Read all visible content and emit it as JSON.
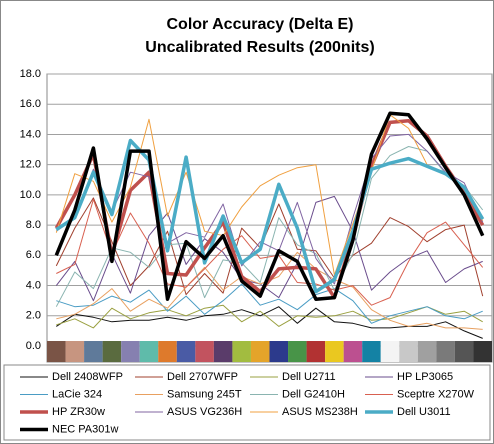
{
  "chart_data": {
    "type": "line",
    "title": "Color Accuracy (Delta E)",
    "subtitle": "Uncalibrated Results (200nits)",
    "categories": [
      null,
      null,
      null,
      null,
      null,
      null,
      null,
      null,
      null,
      null,
      null,
      null,
      null,
      null,
      null,
      null,
      null,
      null,
      null,
      null,
      null,
      null,
      null,
      null
    ],
    "swatch_colors": [
      "#7a5446",
      "#c79580",
      "#5f7a9a",
      "#5a6b3f",
      "#8680b0",
      "#5fbbaa",
      "#de7a2c",
      "#4a5ba5",
      "#c2535f",
      "#5a3c6a",
      "#a2bc40",
      "#e4a42a",
      "#2c3a8c",
      "#489448",
      "#b23232",
      "#eac820",
      "#bc5090",
      "#1482a4",
      "#f4f4f4",
      "#c8c8c8",
      "#a0a0a0",
      "#7a7a7a",
      "#555555",
      "#333333"
    ],
    "ylim": [
      0,
      18
    ],
    "yticks": [
      {
        "value": 0,
        "label": "0.0"
      },
      {
        "value": 2,
        "label": "2.0"
      },
      {
        "value": 4,
        "label": "4.0"
      },
      {
        "value": 6,
        "label": "6.0"
      },
      {
        "value": 8,
        "label": "8.0"
      },
      {
        "value": 10,
        "label": "10.0"
      },
      {
        "value": 12,
        "label": "12.0"
      },
      {
        "value": 14,
        "label": "14.0"
      },
      {
        "value": 16,
        "label": "16.0"
      },
      {
        "value": 18,
        "label": "18.0"
      }
    ],
    "grid": true,
    "legend": "bottom",
    "series": [
      {
        "name": "Dell 2408WFP",
        "color": "#111111",
        "width": 1,
        "values": [
          1.3,
          2.1,
          1.9,
          1.6,
          1.7,
          1.7,
          1.9,
          1.7,
          2.0,
          2.1,
          2.4,
          2.0,
          2.6,
          1.5,
          2.5,
          1.6,
          1.5,
          1.2,
          1.2,
          1.3,
          1.3,
          1.6,
          1.0,
          0.5
        ]
      },
      {
        "name": "Dell 2707WFP",
        "color": "#a0402e",
        "width": 1,
        "values": [
          5.3,
          7.8,
          9.8,
          6.9,
          4.0,
          5.3,
          7.6,
          3.4,
          4.8,
          3.5,
          7.8,
          6.5,
          9.4,
          6.4,
          6.3,
          4.5,
          6.0,
          6.8,
          8.5,
          7.9,
          6.9,
          7.7,
          8.0,
          3.3
        ]
      },
      {
        "name": "Dell U2711",
        "color": "#9aa040",
        "width": 1,
        "values": [
          1.4,
          1.8,
          1.2,
          2.5,
          1.8,
          2.2,
          2.4,
          2.0,
          2.5,
          2.7,
          1.6,
          2.3,
          1.3,
          2.0,
          1.9,
          2.0,
          2.3,
          1.7,
          1.8,
          2.2,
          2.6,
          2.1,
          2.3,
          1.6
        ]
      },
      {
        "name": "HP LP3065",
        "color": "#6a4c8c",
        "width": 1,
        "values": [
          4.0,
          5.6,
          3.0,
          6.1,
          3.5,
          7.3,
          8.8,
          5.4,
          7.1,
          6.2,
          4.4,
          4.1,
          3.2,
          5.5,
          9.5,
          9.9,
          7.6,
          3.7,
          4.9,
          5.8,
          6.3,
          4.2,
          5.1,
          5.6
        ]
      },
      {
        "name": "LaCie 324",
        "color": "#4a9cc4",
        "width": 1,
        "values": [
          3.0,
          2.6,
          2.7,
          3.3,
          2.9,
          3.7,
          2.3,
          3.3,
          2.1,
          3.0,
          4.1,
          2.7,
          3.1,
          2.4,
          3.4,
          3.8,
          3.0,
          1.5,
          2.0,
          2.3,
          2.6,
          2.0,
          1.8,
          2.3
        ]
      },
      {
        "name": "Samsung 245T",
        "color": "#e8a060",
        "width": 1,
        "values": [
          1.8,
          2.1,
          2.8,
          3.8,
          2.3,
          3.1,
          2.5,
          3.9,
          5.2,
          3.7,
          4.6,
          4.1,
          4.6,
          6.2,
          5.1,
          4.4,
          3.9,
          2.4,
          1.7,
          1.3,
          1.5,
          1.2,
          1.2,
          1.1
        ]
      },
      {
        "name": "Dell G2410H",
        "color": "#8ab4b0",
        "width": 1,
        "values": [
          2.6,
          4.9,
          3.8,
          6.5,
          6.2,
          5.2,
          6.7,
          6.8,
          3.2,
          5.7,
          5.5,
          4.2,
          8.5,
          6.7,
          6.1,
          3.7,
          6.1,
          11.1,
          12.6,
          13.2,
          12.9,
          11.4,
          10.6,
          9.0
        ]
      },
      {
        "name": "Sceptre X270W",
        "color": "#d86050",
        "width": 1,
        "values": [
          4.8,
          5.4,
          9.7,
          6.1,
          8.8,
          6.8,
          4.1,
          3.9,
          5.1,
          6.4,
          7.3,
          5.8,
          6.0,
          4.2,
          4.1,
          3.7,
          4.0,
          2.7,
          3.2,
          5.6,
          7.5,
          8.2,
          6.7,
          5.2
        ]
      },
      {
        "name": "HP ZR30w",
        "color": "#c0504d",
        "width": 3.5,
        "values": [
          7.8,
          10.0,
          12.7,
          6.0,
          10.3,
          11.5,
          4.8,
          4.7,
          6.5,
          8.2,
          4.6,
          3.6,
          5.1,
          5.2,
          5.1,
          3.2,
          7.3,
          11.9,
          14.8,
          14.9,
          13.9,
          11.9,
          10.1,
          8.0
        ]
      },
      {
        "name": "ASUS VG236H",
        "color": "#8064a2",
        "width": 1,
        "values": [
          7.6,
          8.5,
          11.7,
          8.9,
          11.5,
          11.2,
          6.8,
          7.5,
          7.2,
          9.4,
          5.3,
          6.9,
          6.3,
          9.5,
          5.8,
          4.1,
          8.5,
          12.4,
          13.9,
          14.0,
          12.9,
          11.5,
          10.8,
          8.2
        ]
      },
      {
        "name": "ASUS MS238H",
        "color": "#f0a040",
        "width": 1,
        "values": [
          7.5,
          11.4,
          10.9,
          8.2,
          10.5,
          15.0,
          8.6,
          11.5,
          7.6,
          7.3,
          9.2,
          10.6,
          11.3,
          11.8,
          12.0,
          4.7,
          8.1,
          11.6,
          15.3,
          14.4,
          12.0,
          11.3,
          10.6,
          8.3
        ]
      },
      {
        "name": "Dell U3011",
        "color": "#4bacc6",
        "width": 3.5,
        "values": [
          7.7,
          8.5,
          11.5,
          8.7,
          13.6,
          12.3,
          6.3,
          12.5,
          5.5,
          8.6,
          5.5,
          6.4,
          10.7,
          7.8,
          3.6,
          4.4,
          7.6,
          11.7,
          12.1,
          12.4,
          11.9,
          11.4,
          10.5,
          8.4
        ]
      },
      {
        "name": "NEC PA301w",
        "color": "#000000",
        "width": 3.5,
        "values": [
          6.0,
          9.0,
          13.1,
          5.6,
          12.9,
          12.9,
          3.1,
          6.9,
          5.8,
          7.3,
          4.3,
          3.3,
          6.3,
          5.6,
          3.1,
          3.2,
          7.0,
          12.7,
          15.4,
          15.3,
          13.7,
          11.8,
          10.0,
          7.3
        ]
      }
    ]
  }
}
